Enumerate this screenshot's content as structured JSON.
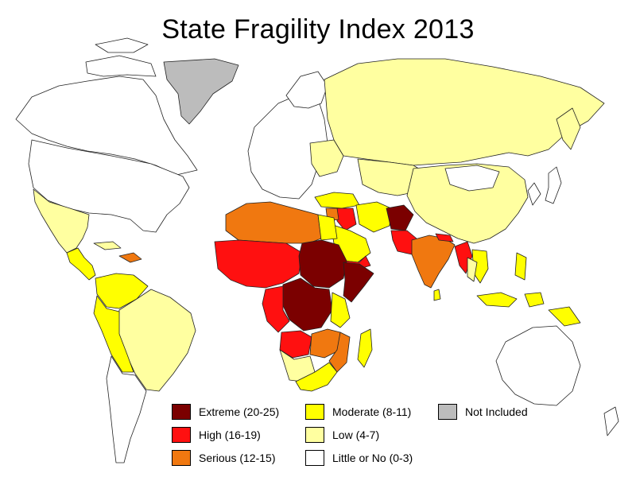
{
  "title": "State Fragility Index 2013",
  "legend": [
    {
      "label": "Extreme (20-25)",
      "color": "#7b0000"
    },
    {
      "label": "High (16-19)",
      "color": "#ff1010"
    },
    {
      "label": "Serious (12-15)",
      "color": "#f07810"
    },
    {
      "label": "Moderate (8-11)",
      "color": "#ffff00"
    },
    {
      "label": "Low (4-7)",
      "color": "#ffffa0"
    },
    {
      "label": "Little or No (0-3)",
      "color": "#ffffff"
    },
    {
      "label": "Not Included",
      "color": "#bcbcbc"
    }
  ]
}
